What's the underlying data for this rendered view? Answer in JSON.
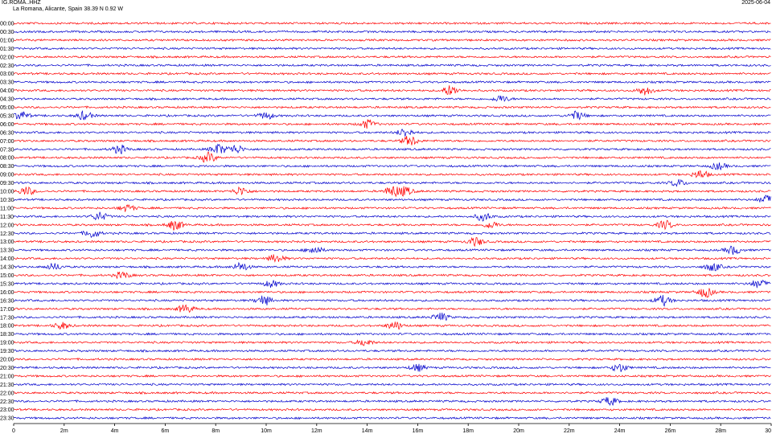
{
  "header": {
    "station": "IG.ROMA..HHZ",
    "location": "La Romana, Alicante, Spain  38.39 N 0.92 W",
    "date": "2025-06-04"
  },
  "colors": {
    "red": "#ff0000",
    "blue": "#0000cc",
    "axis": "#000000"
  },
  "chart_data": {
    "type": "line",
    "title": "IG.ROMA..HHZ",
    "xlabel": "",
    "ylabel": "",
    "xlim": [
      0,
      30
    ],
    "x_unit": "minutes",
    "x_ticks": [
      "0",
      "2m",
      "4m",
      "6m",
      "8m",
      "10m",
      "12m",
      "14m",
      "16m",
      "18m",
      "20m",
      "22m",
      "24m",
      "26m",
      "28m",
      "30"
    ],
    "row_labels": [
      "00:00",
      "00:30",
      "01:00",
      "01:30",
      "02:00",
      "02:30",
      "03:00",
      "03:30",
      "04:00",
      "04:30",
      "05:00",
      "05:30",
      "06:00",
      "06:30",
      "07:00",
      "07:30",
      "08:00",
      "08:30",
      "09:00",
      "09:30",
      "10:00",
      "10:30",
      "11:00",
      "11:30",
      "12:00",
      "12:30",
      "13:00",
      "13:30",
      "14:00",
      "14:30",
      "15:00",
      "15:30",
      "16:00",
      "16:30",
      "17:00",
      "17:30",
      "18:00",
      "18:30",
      "19:00",
      "19:30",
      "20:00",
      "20:30",
      "21:00",
      "21:30",
      "22:00",
      "22:30",
      "23:00",
      "23:30"
    ],
    "row_colors": [
      "red",
      "blue"
    ],
    "events": [
      {
        "row": "04:00",
        "minute": 17.3,
        "amplitude": 6
      },
      {
        "row": "04:00",
        "minute": 25.0,
        "amplitude": 5
      },
      {
        "row": "04:30",
        "minute": 19.3,
        "amplitude": 4
      },
      {
        "row": "05:30",
        "minute": 0.3,
        "amplitude": 5
      },
      {
        "row": "05:30",
        "minute": 2.8,
        "amplitude": 5
      },
      {
        "row": "05:30",
        "minute": 10.0,
        "amplitude": 4
      },
      {
        "row": "05:30",
        "minute": 22.3,
        "amplitude": 5
      },
      {
        "row": "06:00",
        "minute": 14.0,
        "amplitude": 5
      },
      {
        "row": "06:30",
        "minute": 15.5,
        "amplitude": 5
      },
      {
        "row": "07:00",
        "minute": 15.7,
        "amplitude": 6
      },
      {
        "row": "07:30",
        "minute": 4.2,
        "amplitude": 5
      },
      {
        "row": "07:30",
        "minute": 8.1,
        "amplitude": 6
      },
      {
        "row": "07:30",
        "minute": 8.8,
        "amplitude": 5
      },
      {
        "row": "08:00",
        "minute": 7.7,
        "amplitude": 6
      },
      {
        "row": "08:30",
        "minute": 27.9,
        "amplitude": 4
      },
      {
        "row": "09:00",
        "minute": 27.2,
        "amplitude": 5
      },
      {
        "row": "09:30",
        "minute": 26.3,
        "amplitude": 4
      },
      {
        "row": "10:00",
        "minute": 0.5,
        "amplitude": 5
      },
      {
        "row": "10:00",
        "minute": 9.0,
        "amplitude": 5
      },
      {
        "row": "10:00",
        "minute": 15.0,
        "amplitude": 6
      },
      {
        "row": "10:00",
        "minute": 15.5,
        "amplitude": 5
      },
      {
        "row": "10:30",
        "minute": 29.8,
        "amplitude": 5
      },
      {
        "row": "11:00",
        "minute": 4.5,
        "amplitude": 4
      },
      {
        "row": "11:30",
        "minute": 3.4,
        "amplitude": 5
      },
      {
        "row": "11:30",
        "minute": 18.6,
        "amplitude": 5
      },
      {
        "row": "12:00",
        "minute": 6.4,
        "amplitude": 6
      },
      {
        "row": "12:00",
        "minute": 18.9,
        "amplitude": 4
      },
      {
        "row": "12:00",
        "minute": 25.8,
        "amplitude": 5
      },
      {
        "row": "12:30",
        "minute": 3.1,
        "amplitude": 5
      },
      {
        "row": "13:00",
        "minute": 18.3,
        "amplitude": 5
      },
      {
        "row": "13:30",
        "minute": 11.9,
        "amplitude": 5
      },
      {
        "row": "13:30",
        "minute": 28.5,
        "amplitude": 5
      },
      {
        "row": "14:00",
        "minute": 10.4,
        "amplitude": 5
      },
      {
        "row": "14:30",
        "minute": 1.6,
        "amplitude": 4
      },
      {
        "row": "14:30",
        "minute": 9.0,
        "amplitude": 5
      },
      {
        "row": "14:30",
        "minute": 27.7,
        "amplitude": 5
      },
      {
        "row": "15:00",
        "minute": 4.3,
        "amplitude": 4
      },
      {
        "row": "15:30",
        "minute": 10.2,
        "amplitude": 4
      },
      {
        "row": "15:30",
        "minute": 29.5,
        "amplitude": 5
      },
      {
        "row": "16:00",
        "minute": 27.4,
        "amplitude": 6
      },
      {
        "row": "16:30",
        "minute": 9.9,
        "amplitude": 6
      },
      {
        "row": "16:30",
        "minute": 25.7,
        "amplitude": 6
      },
      {
        "row": "17:00",
        "minute": 6.8,
        "amplitude": 5
      },
      {
        "row": "17:30",
        "minute": 16.9,
        "amplitude": 5
      },
      {
        "row": "18:00",
        "minute": 1.9,
        "amplitude": 4
      },
      {
        "row": "18:00",
        "minute": 15.1,
        "amplitude": 5
      },
      {
        "row": "19:00",
        "minute": 13.9,
        "amplitude": 4
      },
      {
        "row": "20:30",
        "minute": 16.0,
        "amplitude": 4
      },
      {
        "row": "20:30",
        "minute": 24.0,
        "amplitude": 5
      },
      {
        "row": "22:30",
        "minute": 23.6,
        "amplitude": 5
      }
    ],
    "legend": "none",
    "grid": false
  }
}
